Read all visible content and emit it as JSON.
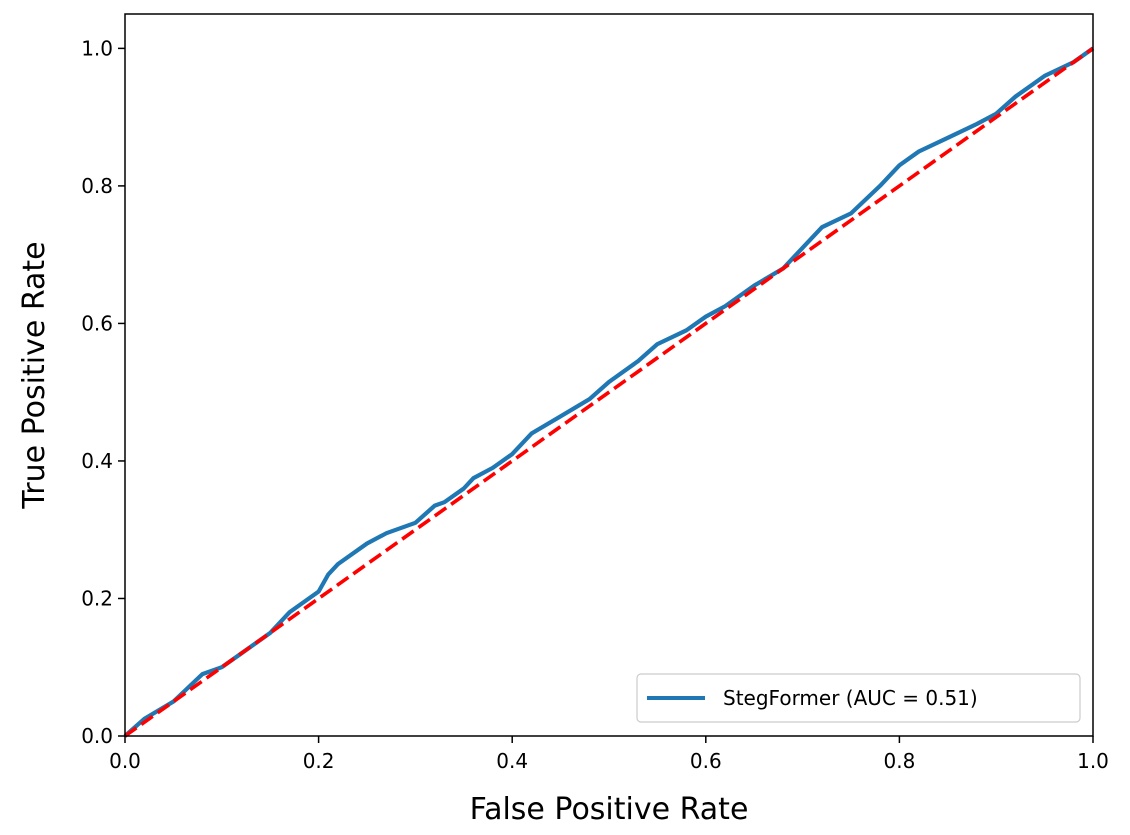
{
  "chart_data": {
    "type": "line",
    "title": "",
    "xlabel": "False Positive Rate",
    "ylabel": "True Positive Rate",
    "xlim": [
      0.0,
      1.0
    ],
    "ylim": [
      0.0,
      1.05
    ],
    "xticks": [
      "0.0",
      "0.2",
      "0.4",
      "0.6",
      "0.8",
      "1.0"
    ],
    "yticks": [
      "0.0",
      "0.2",
      "0.4",
      "0.6",
      "0.8",
      "1.0"
    ],
    "grid": false,
    "legend_position": "lower right",
    "series": [
      {
        "name": "StegFormer (AUC = 0.51)",
        "color": "#1f77b4",
        "style": "solid",
        "x": [
          0.0,
          0.02,
          0.05,
          0.08,
          0.1,
          0.12,
          0.15,
          0.17,
          0.2,
          0.21,
          0.22,
          0.25,
          0.27,
          0.3,
          0.32,
          0.33,
          0.35,
          0.36,
          0.38,
          0.4,
          0.42,
          0.45,
          0.48,
          0.5,
          0.53,
          0.55,
          0.58,
          0.6,
          0.62,
          0.65,
          0.68,
          0.7,
          0.72,
          0.75,
          0.78,
          0.8,
          0.82,
          0.85,
          0.88,
          0.9,
          0.92,
          0.95,
          0.98,
          1.0
        ],
        "y": [
          0.0,
          0.025,
          0.05,
          0.09,
          0.1,
          0.12,
          0.15,
          0.18,
          0.21,
          0.235,
          0.25,
          0.28,
          0.295,
          0.31,
          0.335,
          0.34,
          0.36,
          0.375,
          0.39,
          0.41,
          0.44,
          0.465,
          0.49,
          0.515,
          0.545,
          0.57,
          0.59,
          0.61,
          0.625,
          0.655,
          0.68,
          0.71,
          0.74,
          0.76,
          0.8,
          0.83,
          0.85,
          0.87,
          0.89,
          0.905,
          0.93,
          0.96,
          0.98,
          1.0
        ]
      },
      {
        "name": "",
        "color": "#ff0000",
        "style": "dashed",
        "x": [
          0.0,
          1.0
        ],
        "y": [
          0.0,
          1.0
        ]
      }
    ]
  }
}
